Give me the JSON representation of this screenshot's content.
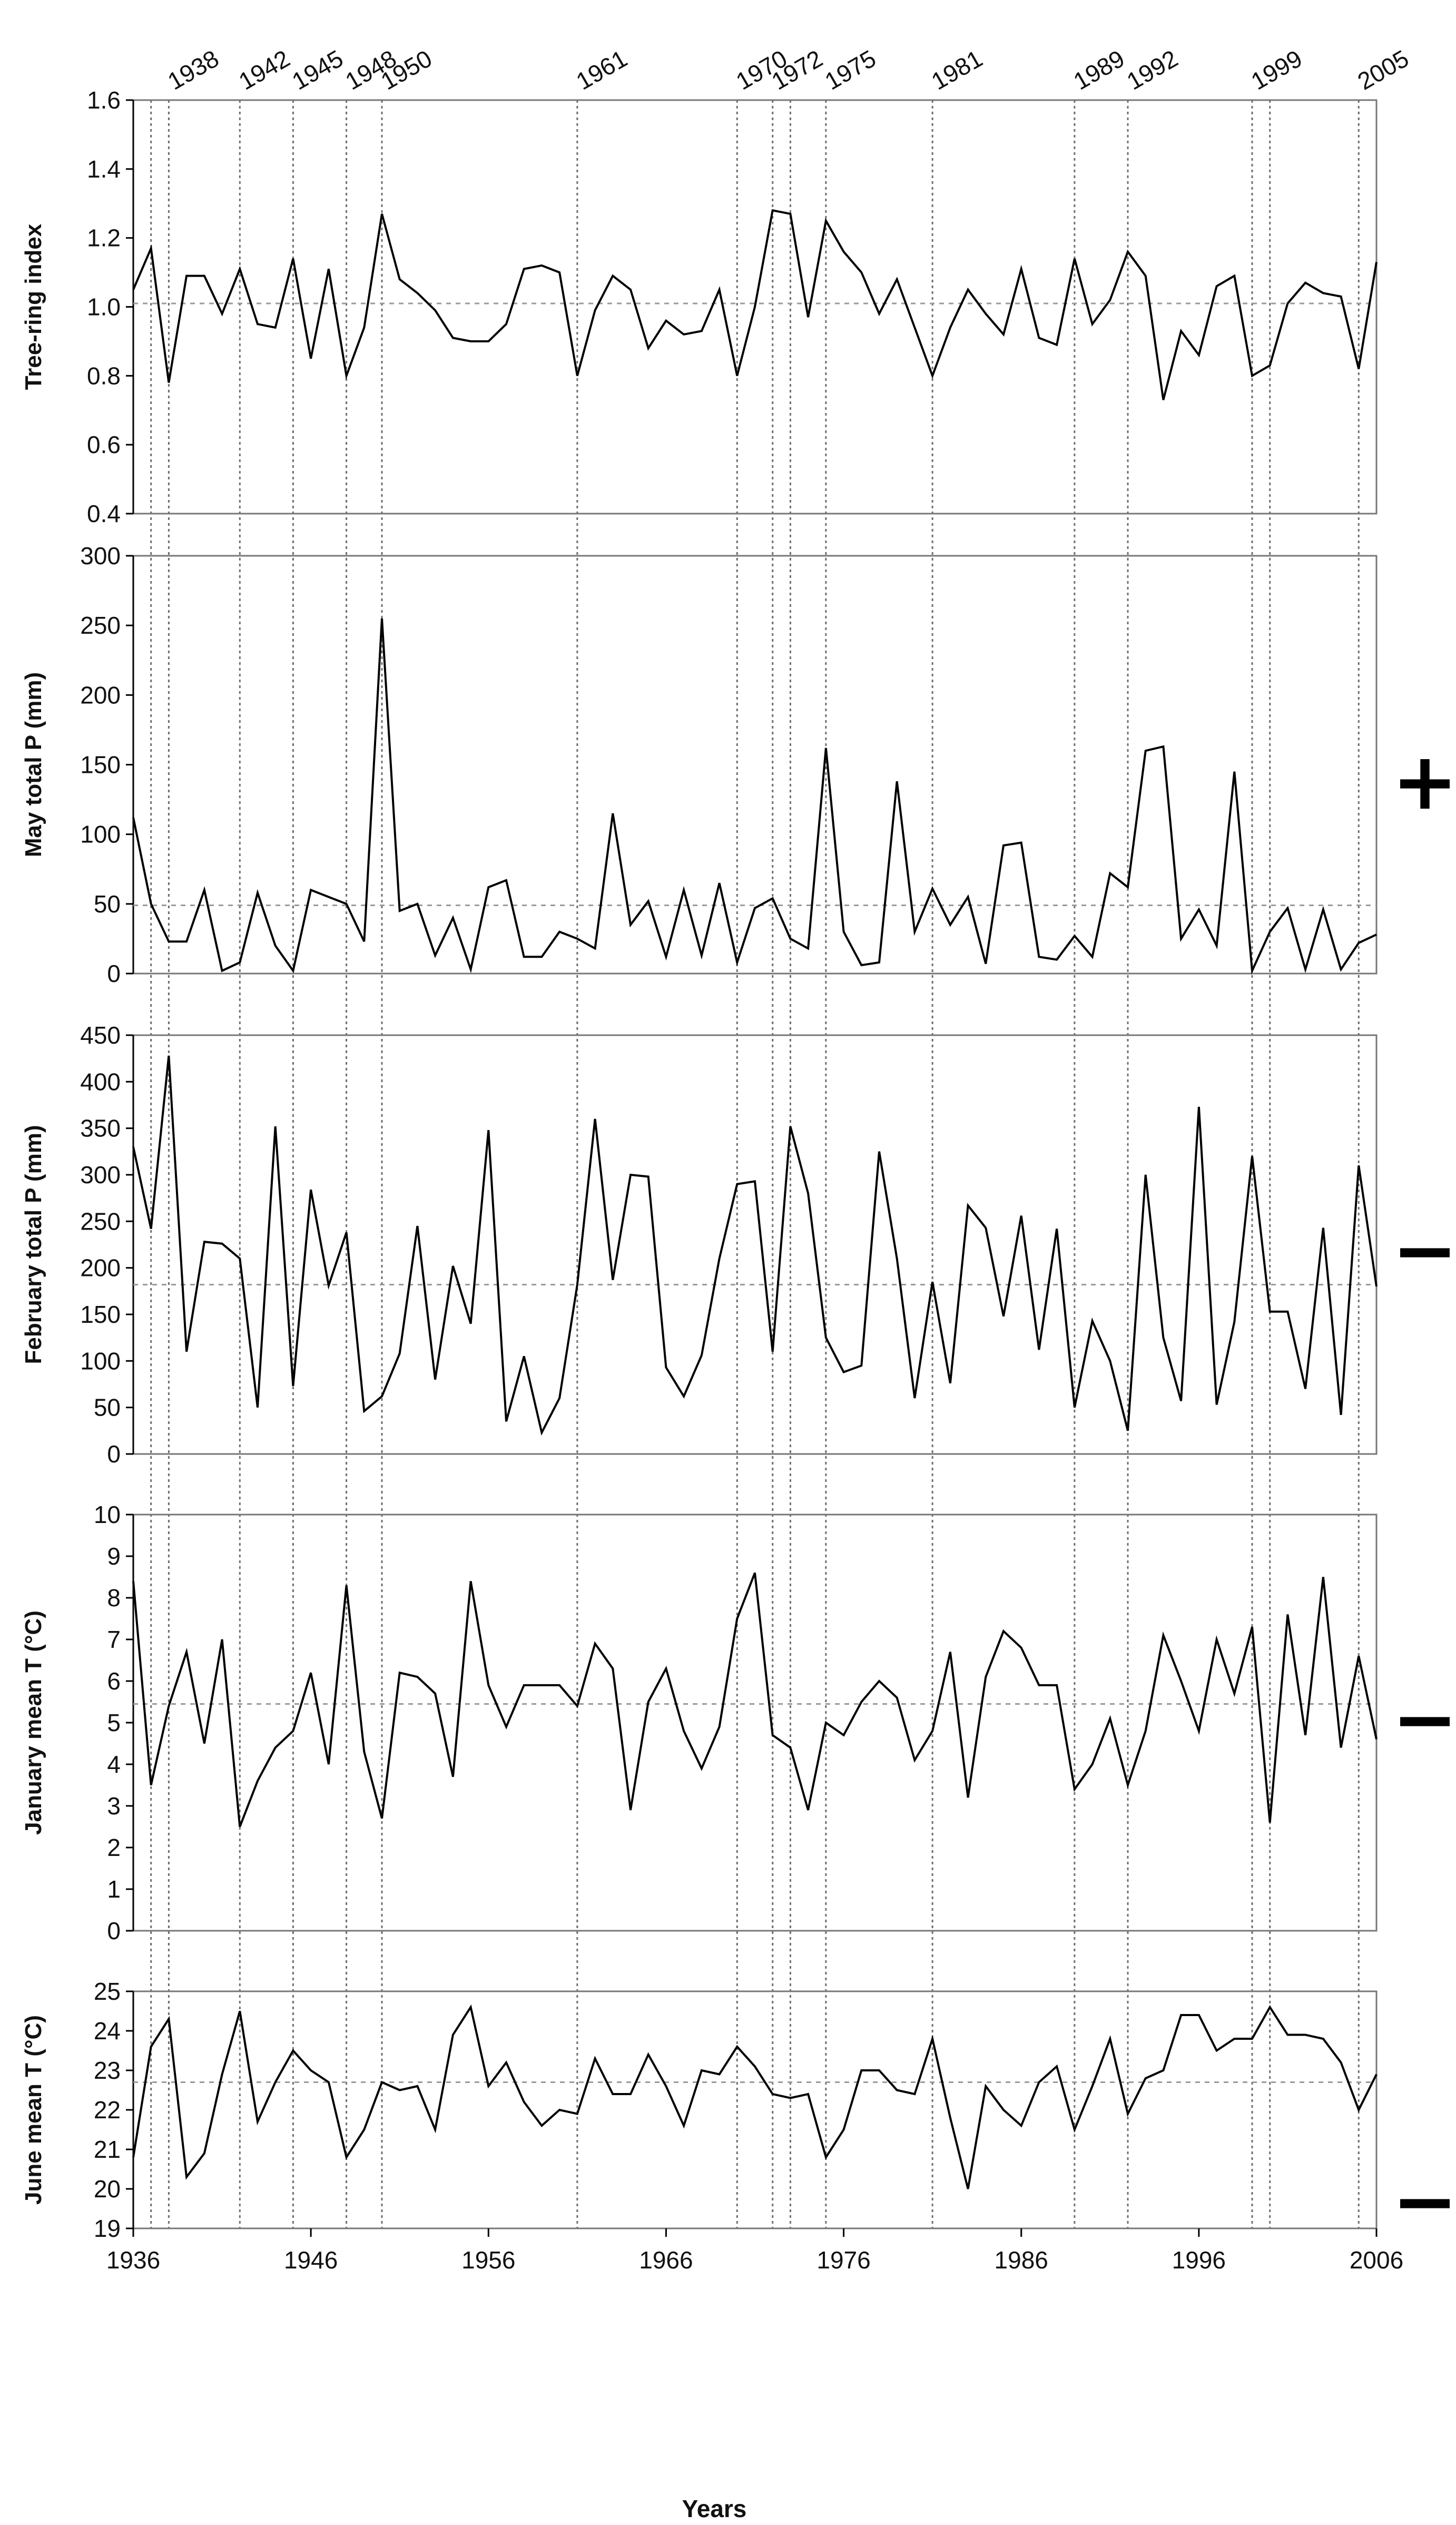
{
  "chart_data": {
    "type": "line",
    "x": [
      1936,
      1937,
      1938,
      1939,
      1940,
      1941,
      1942,
      1943,
      1944,
      1945,
      1946,
      1947,
      1948,
      1949,
      1950,
      1951,
      1952,
      1953,
      1954,
      1955,
      1956,
      1957,
      1958,
      1959,
      1960,
      1961,
      1962,
      1963,
      1964,
      1965,
      1966,
      1967,
      1968,
      1969,
      1970,
      1971,
      1972,
      1973,
      1974,
      1975,
      1976,
      1977,
      1978,
      1979,
      1980,
      1981,
      1982,
      1983,
      1984,
      1985,
      1986,
      1987,
      1988,
      1989,
      1990,
      1991,
      1992,
      1993,
      1994,
      1995,
      1996,
      1997,
      1998,
      1999,
      2000,
      2001,
      2002,
      2003,
      2004,
      2005,
      2006
    ],
    "xlabel": "Years",
    "x_ticks": [
      "1936",
      "1946",
      "1956",
      "1966",
      "1976",
      "1986",
      "1996",
      "2006"
    ],
    "xlim": [
      1936,
      2006
    ],
    "highlighted_years": [
      1937,
      1938,
      1942,
      1945,
      1948,
      1950,
      1961,
      1970,
      1972,
      1973,
      1975,
      1981,
      1989,
      1992,
      1999,
      2000,
      2005
    ],
    "highlighted_year_labels": [
      "1938",
      "1942",
      "1945",
      "1948",
      "1950",
      "1961",
      "1970",
      "1972",
      "1975",
      "1981",
      "1989",
      "1992",
      "1999",
      "2005"
    ],
    "panels": [
      {
        "name": "tree-ring",
        "ylabel": "Tree-ring index",
        "ylim": [
          0.4,
          1.6
        ],
        "y_ticks": [
          "0.4",
          "0.6",
          "0.8",
          "1.0",
          "1.2",
          "1.4",
          "1.6"
        ],
        "mean": 1.01,
        "sign": "",
        "values": [
          1.05,
          1.17,
          0.78,
          1.09,
          1.09,
          0.98,
          1.11,
          0.95,
          0.94,
          1.14,
          0.85,
          1.11,
          0.8,
          0.94,
          1.27,
          1.08,
          1.04,
          0.99,
          0.91,
          0.9,
          0.9,
          0.95,
          1.11,
          1.12,
          1.1,
          0.8,
          0.99,
          1.09,
          1.05,
          0.88,
          0.96,
          0.92,
          0.93,
          1.05,
          0.8,
          1.0,
          1.28,
          1.27,
          0.97,
          1.25,
          1.16,
          1.1,
          0.98,
          1.08,
          0.94,
          0.8,
          0.94,
          1.05,
          0.98,
          0.92,
          1.11,
          0.91,
          0.89,
          1.14,
          0.95,
          1.02,
          1.16,
          1.09,
          0.73,
          0.93,
          0.86,
          1.06,
          1.09,
          0.8,
          0.83,
          1.01,
          1.07,
          1.04,
          1.03,
          0.82,
          1.13
        ]
      },
      {
        "name": "may-precip",
        "ylabel": "May total P (mm)",
        "ylim": [
          0,
          300
        ],
        "y_ticks": [
          "0",
          "50",
          "100",
          "150",
          "200",
          "250",
          "300"
        ],
        "mean": 49,
        "sign": "+",
        "values": [
          112,
          50,
          23,
          23,
          60,
          2,
          8,
          58,
          20,
          2,
          60,
          55,
          50,
          23,
          255,
          45,
          50,
          13,
          40,
          3,
          62,
          67,
          12,
          12,
          30,
          25,
          18,
          115,
          35,
          52,
          12,
          60,
          13,
          65,
          8,
          47,
          54,
          25,
          18,
          162,
          30,
          6,
          8,
          138,
          30,
          61,
          35,
          55,
          7,
          92,
          94,
          12,
          10,
          27,
          12,
          72,
          62,
          160,
          163,
          25,
          46,
          20,
          145,
          2,
          30,
          47,
          3,
          46,
          3,
          22,
          28
        ]
      },
      {
        "name": "feb-precip",
        "ylabel": "February total P (mm)",
        "ylim": [
          0,
          450
        ],
        "y_ticks": [
          "0",
          "50",
          "100",
          "150",
          "200",
          "250",
          "300",
          "350",
          "400",
          "450"
        ],
        "mean": 182,
        "sign": "−",
        "values": [
          330,
          242,
          428,
          110,
          228,
          226,
          210,
          50,
          352,
          73,
          284,
          181,
          238,
          46,
          62,
          108,
          245,
          80,
          202,
          140,
          348,
          35,
          105,
          23,
          60,
          182,
          360,
          187,
          300,
          298,
          93,
          62,
          106,
          210,
          290,
          293,
          110,
          352,
          280,
          125,
          88,
          95,
          325,
          210,
          60,
          185,
          76,
          267,
          243,
          148,
          256,
          112,
          242,
          50,
          143,
          100,
          25,
          300,
          125,
          57,
          373,
          53,
          142,
          320,
          153,
          153,
          70,
          243,
          42,
          310,
          180
        ]
      },
      {
        "name": "jan-temp",
        "ylabel": "January mean T (°C)",
        "ylim": [
          0,
          10
        ],
        "y_ticks": [
          "0",
          "1",
          "2",
          "3",
          "4",
          "5",
          "6",
          "7",
          "8",
          "9",
          "10"
        ],
        "mean": 5.45,
        "sign": "−",
        "values": [
          8.4,
          3.5,
          5.4,
          6.7,
          4.5,
          7.0,
          2.5,
          3.6,
          4.4,
          4.8,
          6.2,
          4.0,
          8.3,
          4.3,
          2.7,
          6.2,
          6.1,
          5.7,
          3.7,
          8.4,
          5.9,
          4.9,
          5.9,
          5.9,
          5.9,
          5.4,
          6.9,
          6.3,
          2.9,
          5.5,
          6.3,
          4.8,
          3.9,
          4.9,
          7.5,
          8.6,
          4.7,
          4.4,
          2.9,
          5.0,
          4.7,
          5.5,
          6.0,
          5.6,
          4.1,
          4.8,
          6.7,
          3.2,
          6.1,
          7.2,
          6.8,
          5.9,
          5.9,
          3.4,
          4.0,
          5.1,
          3.5,
          4.8,
          7.1,
          6.0,
          4.8,
          7.0,
          5.7,
          7.3,
          2.6,
          7.6,
          4.7,
          8.5,
          4.4,
          6.6,
          4.6
        ]
      },
      {
        "name": "jun-temp",
        "ylabel": "June mean T (°C)",
        "ylim": [
          19,
          25
        ],
        "y_ticks": [
          "19",
          "20",
          "21",
          "22",
          "23",
          "24",
          "25"
        ],
        "mean": 22.7,
        "sign": "−",
        "values": [
          20.8,
          23.6,
          24.3,
          20.3,
          20.9,
          22.9,
          24.5,
          21.7,
          22.7,
          23.5,
          23.0,
          22.7,
          20.8,
          21.5,
          22.7,
          22.5,
          22.6,
          21.5,
          23.9,
          24.6,
          22.6,
          23.2,
          22.2,
          21.6,
          22.0,
          21.9,
          23.3,
          22.4,
          22.4,
          23.4,
          22.6,
          21.6,
          23.0,
          22.9,
          23.6,
          23.1,
          22.4,
          22.3,
          22.4,
          20.8,
          21.5,
          23.0,
          23.0,
          22.5,
          22.4,
          23.8,
          21.8,
          20.0,
          22.6,
          22.0,
          21.6,
          22.7,
          23.1,
          21.5,
          22.6,
          23.8,
          21.9,
          22.8,
          23.0,
          24.4,
          24.4,
          23.5,
          23.8,
          23.8,
          24.6,
          23.9,
          23.9,
          23.8,
          23.2,
          22.0,
          22.9
        ]
      }
    ]
  }
}
